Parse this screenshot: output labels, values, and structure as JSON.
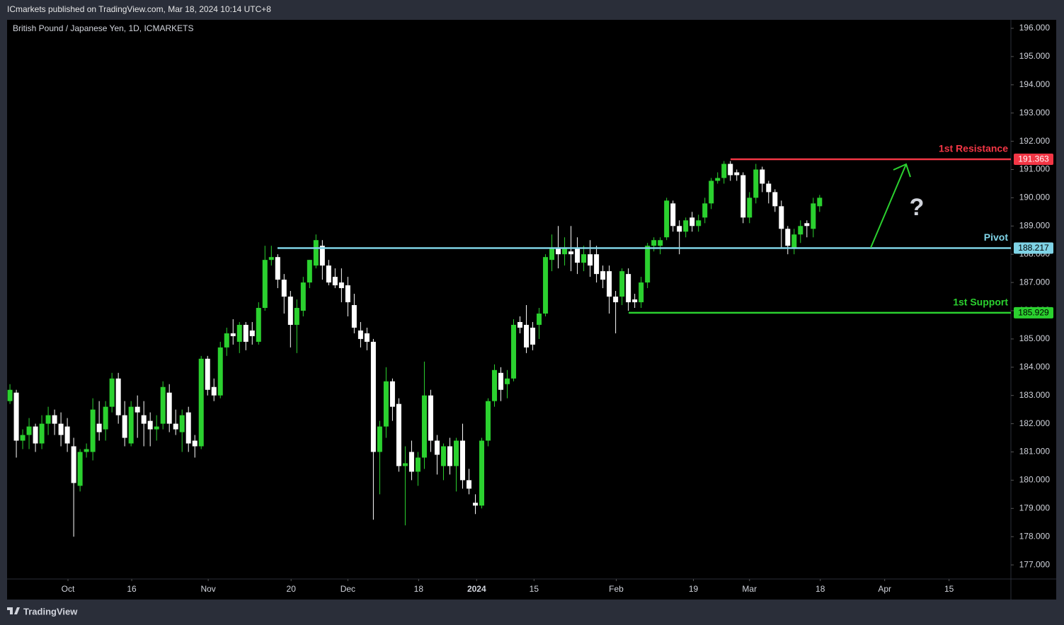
{
  "header": {
    "text": "ICmarkets published on TradingView.com, Mar 18, 2024 10:14 UTC+8"
  },
  "footer": {
    "brand": "TradingView"
  },
  "chart_data": {
    "type": "candlestick",
    "title": "British Pound / Japanese Yen, 1D, ICMARKETS",
    "up_color": "#2bd12f",
    "down_color": "#ffffff",
    "ylim": [
      176.3,
      196.3
    ],
    "yticks": [
      {
        "value": 177,
        "label": "177.000"
      },
      {
        "value": 178,
        "label": "178.000"
      },
      {
        "value": 179,
        "label": "179.000"
      },
      {
        "value": 180,
        "label": "180.000"
      },
      {
        "value": 181,
        "label": "181.000"
      },
      {
        "value": 182,
        "label": "182.000"
      },
      {
        "value": 183,
        "label": "183.000"
      },
      {
        "value": 184,
        "label": "184.000"
      },
      {
        "value": 185,
        "label": "185.000"
      },
      {
        "value": 186,
        "label": "186.000"
      },
      {
        "value": 187,
        "label": "187.000"
      },
      {
        "value": 188,
        "label": "188.000"
      },
      {
        "value": 189,
        "label": "189.000"
      },
      {
        "value": 190,
        "label": "190.000"
      },
      {
        "value": 191,
        "label": "191.000"
      },
      {
        "value": 192,
        "label": "192.000"
      },
      {
        "value": 193,
        "label": "193.000"
      },
      {
        "value": 194,
        "label": "194.000"
      },
      {
        "value": 195,
        "label": "195.000"
      },
      {
        "value": 196,
        "label": "196.000"
      }
    ],
    "xlim": [
      -0.45,
      157
    ],
    "xticks": [
      {
        "value": 9.1,
        "label": "Oct"
      },
      {
        "value": 19.1,
        "label": "16"
      },
      {
        "value": 31.1,
        "label": "Nov"
      },
      {
        "value": 44.1,
        "label": "20"
      },
      {
        "value": 53,
        "label": "Dec"
      },
      {
        "value": 64.1,
        "label": "18"
      },
      {
        "value": 73.2,
        "label": "2024"
      },
      {
        "value": 82.2,
        "label": "15"
      },
      {
        "value": 95.1,
        "label": "Feb"
      },
      {
        "value": 107.2,
        "label": "19"
      },
      {
        "value": 116,
        "label": "Mar"
      },
      {
        "value": 127.1,
        "label": "18"
      },
      {
        "value": 137.2,
        "label": "Apr"
      },
      {
        "value": 147.3,
        "label": "15"
      }
    ],
    "ohlc": [
      [
        182.8,
        183.4,
        182.7,
        183.2
      ],
      [
        183.1,
        183.2,
        180.8,
        181.4
      ],
      [
        181.4,
        181.8,
        181.1,
        181.6
      ],
      [
        181.6,
        182.2,
        181.1,
        181.9
      ],
      [
        181.9,
        182.0,
        181.0,
        181.3
      ],
      [
        181.3,
        182.3,
        181.1,
        182.0
      ],
      [
        182.0,
        182.6,
        181.6,
        182.3
      ],
      [
        182.3,
        182.5,
        181.6,
        182.0
      ],
      [
        182.0,
        182.4,
        181.2,
        181.6
      ],
      [
        181.9,
        182.2,
        181.0,
        181.3
      ],
      [
        181.2,
        181.5,
        178.0,
        179.9
      ],
      [
        179.8,
        181.1,
        179.6,
        181.0
      ],
      [
        181.0,
        181.3,
        180.8,
        181.1
      ],
      [
        181.0,
        182.9,
        180.7,
        182.5
      ],
      [
        182.0,
        182.8,
        181.4,
        181.7
      ],
      [
        181.8,
        182.8,
        181.4,
        182.6
      ],
      [
        182.6,
        183.8,
        182.4,
        183.6
      ],
      [
        183.6,
        183.8,
        182.0,
        182.3
      ],
      [
        182.3,
        182.8,
        181.2,
        181.5
      ],
      [
        181.3,
        182.8,
        181.2,
        182.6
      ],
      [
        182.6,
        183.0,
        181.5,
        182.4
      ],
      [
        182.3,
        182.8,
        181.2,
        182.0
      ],
      [
        182.1,
        182.4,
        181.2,
        181.8
      ],
      [
        181.8,
        182.3,
        181.4,
        181.9
      ],
      [
        182.0,
        183.5,
        181.8,
        183.3
      ],
      [
        183.1,
        183.4,
        181.7,
        182.0
      ],
      [
        182.0,
        182.5,
        181.6,
        181.8
      ],
      [
        181.7,
        182.5,
        181.0,
        182.3
      ],
      [
        182.4,
        182.6,
        181.0,
        181.3
      ],
      [
        181.4,
        181.6,
        180.8,
        181.2
      ],
      [
        181.2,
        184.4,
        181.1,
        184.3
      ],
      [
        184.3,
        184.4,
        183.0,
        183.2
      ],
      [
        183.3,
        183.6,
        182.8,
        183.0
      ],
      [
        183.0,
        184.9,
        182.9,
        184.7
      ],
      [
        184.7,
        185.4,
        184.4,
        185.2
      ],
      [
        185.2,
        185.7,
        184.8,
        185.1
      ],
      [
        184.9,
        185.6,
        184.5,
        185.5
      ],
      [
        185.5,
        185.6,
        184.6,
        184.9
      ],
      [
        185.3,
        185.6,
        184.8,
        185.1
      ],
      [
        184.9,
        186.3,
        184.8,
        186.1
      ],
      [
        186.1,
        188.3,
        186.0,
        187.8
      ],
      [
        187.8,
        188.3,
        187.6,
        187.9
      ],
      [
        187.9,
        188.0,
        186.8,
        187.1
      ],
      [
        187.1,
        187.3,
        185.9,
        186.5
      ],
      [
        186.5,
        186.7,
        184.7,
        185.5
      ],
      [
        185.5,
        186.4,
        184.5,
        186.1
      ],
      [
        186.0,
        187.2,
        185.8,
        187.0
      ],
      [
        187.0,
        187.8,
        186.8,
        187.8
      ],
      [
        187.6,
        188.7,
        187.5,
        188.5
      ],
      [
        188.3,
        188.5,
        187.1,
        187.6
      ],
      [
        187.6,
        187.8,
        186.9,
        187.0
      ],
      [
        187.2,
        187.5,
        186.8,
        186.9
      ],
      [
        187.0,
        187.5,
        186.3,
        186.8
      ],
      [
        186.9,
        187.2,
        185.8,
        186.3
      ],
      [
        186.2,
        186.6,
        185.2,
        185.4
      ],
      [
        185.3,
        185.6,
        184.7,
        185.0
      ],
      [
        185.2,
        185.4,
        184.6,
        184.9
      ],
      [
        184.9,
        185.0,
        178.6,
        181.0
      ],
      [
        181.0,
        182.1,
        179.5,
        181.9
      ],
      [
        181.9,
        184.0,
        181.5,
        183.5
      ],
      [
        183.5,
        183.6,
        182.1,
        182.6
      ],
      [
        182.7,
        182.9,
        180.3,
        180.5
      ],
      [
        180.5,
        181.2,
        178.4,
        180.6
      ],
      [
        181.0,
        181.4,
        180.0,
        180.3
      ],
      [
        180.3,
        181.0,
        179.8,
        180.8
      ],
      [
        180.8,
        184.2,
        180.4,
        183.0
      ],
      [
        183.0,
        183.2,
        181.0,
        181.4
      ],
      [
        181.4,
        181.6,
        180.2,
        180.9
      ],
      [
        180.5,
        181.3,
        180.0,
        181.2
      ],
      [
        181.2,
        181.5,
        180.2,
        180.5
      ],
      [
        180.5,
        181.5,
        179.6,
        181.4
      ],
      [
        181.4,
        182.0,
        179.7,
        180.0
      ],
      [
        180.0,
        180.4,
        179.5,
        179.7
      ],
      [
        179.2,
        179.5,
        178.8,
        179.1
      ],
      [
        179.1,
        181.5,
        179.0,
        181.4
      ],
      [
        181.4,
        182.9,
        181.2,
        182.8
      ],
      [
        182.8,
        184.1,
        182.6,
        183.9
      ],
      [
        183.8,
        184.0,
        182.8,
        183.2
      ],
      [
        183.4,
        183.9,
        182.9,
        183.6
      ],
      [
        183.6,
        185.7,
        183.5,
        185.5
      ],
      [
        185.6,
        185.8,
        185.2,
        185.4
      ],
      [
        185.5,
        186.2,
        184.5,
        184.7
      ],
      [
        185.4,
        185.6,
        184.6,
        184.8
      ],
      [
        185.5,
        186.1,
        185.0,
        185.9
      ],
      [
        185.9,
        188.0,
        185.8,
        187.9
      ],
      [
        187.8,
        188.7,
        187.4,
        188.2
      ],
      [
        188.2,
        189.0,
        187.5,
        188.0
      ],
      [
        188.0,
        188.6,
        187.6,
        188.2
      ],
      [
        188.1,
        189.0,
        187.4,
        188.0
      ],
      [
        188.2,
        188.6,
        187.3,
        187.7
      ],
      [
        187.7,
        188.3,
        187.4,
        188.0
      ],
      [
        188.0,
        188.5,
        187.2,
        187.6
      ],
      [
        188.0,
        188.3,
        187.0,
        187.3
      ],
      [
        187.4,
        187.6,
        186.8,
        187.1
      ],
      [
        187.4,
        187.6,
        185.9,
        186.5
      ],
      [
        186.5,
        186.7,
        185.2,
        186.3
      ],
      [
        186.5,
        187.5,
        186.2,
        187.4
      ],
      [
        187.3,
        187.5,
        186.0,
        186.3
      ],
      [
        186.4,
        186.6,
        186.1,
        186.3
      ],
      [
        186.3,
        187.2,
        186.1,
        187.0
      ],
      [
        187.0,
        188.4,
        186.8,
        188.3
      ],
      [
        188.3,
        188.6,
        188.1,
        188.5
      ],
      [
        188.3,
        188.6,
        188.0,
        188.5
      ],
      [
        188.6,
        190.0,
        188.5,
        189.9
      ],
      [
        189.8,
        189.9,
        188.8,
        189.0
      ],
      [
        189.0,
        189.2,
        188.0,
        188.8
      ],
      [
        188.8,
        189.3,
        188.6,
        189.2
      ],
      [
        189.3,
        189.5,
        188.8,
        189.0
      ],
      [
        189.0,
        189.4,
        188.8,
        189.2
      ],
      [
        189.3,
        190.0,
        189.1,
        189.8
      ],
      [
        189.8,
        190.7,
        189.6,
        190.6
      ],
      [
        190.6,
        190.9,
        190.5,
        190.7
      ],
      [
        190.7,
        191.3,
        190.5,
        191.2
      ],
      [
        191.2,
        191.3,
        190.6,
        190.8
      ],
      [
        190.9,
        191.0,
        190.6,
        190.8
      ],
      [
        190.8,
        190.9,
        189.1,
        189.3
      ],
      [
        189.3,
        190.2,
        189.1,
        190.0
      ],
      [
        190.0,
        191.2,
        189.8,
        191.0
      ],
      [
        191.0,
        191.1,
        190.2,
        190.5
      ],
      [
        190.5,
        190.6,
        189.8,
        190.2
      ],
      [
        190.2,
        190.3,
        189.5,
        189.7
      ],
      [
        189.7,
        189.9,
        188.2,
        188.9
      ],
      [
        188.9,
        189.0,
        188.0,
        188.3
      ],
      [
        188.2,
        188.9,
        188.0,
        188.7
      ],
      [
        188.7,
        189.2,
        188.4,
        189.0
      ],
      [
        189.1,
        189.2,
        188.6,
        189.0
      ],
      [
        188.9,
        190.0,
        188.6,
        189.8
      ],
      [
        189.7,
        190.1,
        189.5,
        190.0
      ]
    ],
    "levels": [
      {
        "name": "1st Resistance",
        "value": 191.363,
        "color": "#f23645"
      },
      {
        "name": "Pivot",
        "value": 188.217,
        "color": "#7fd3e6"
      },
      {
        "name": "1st Support",
        "value": 185.929,
        "color": "#2bd12f"
      }
    ]
  }
}
